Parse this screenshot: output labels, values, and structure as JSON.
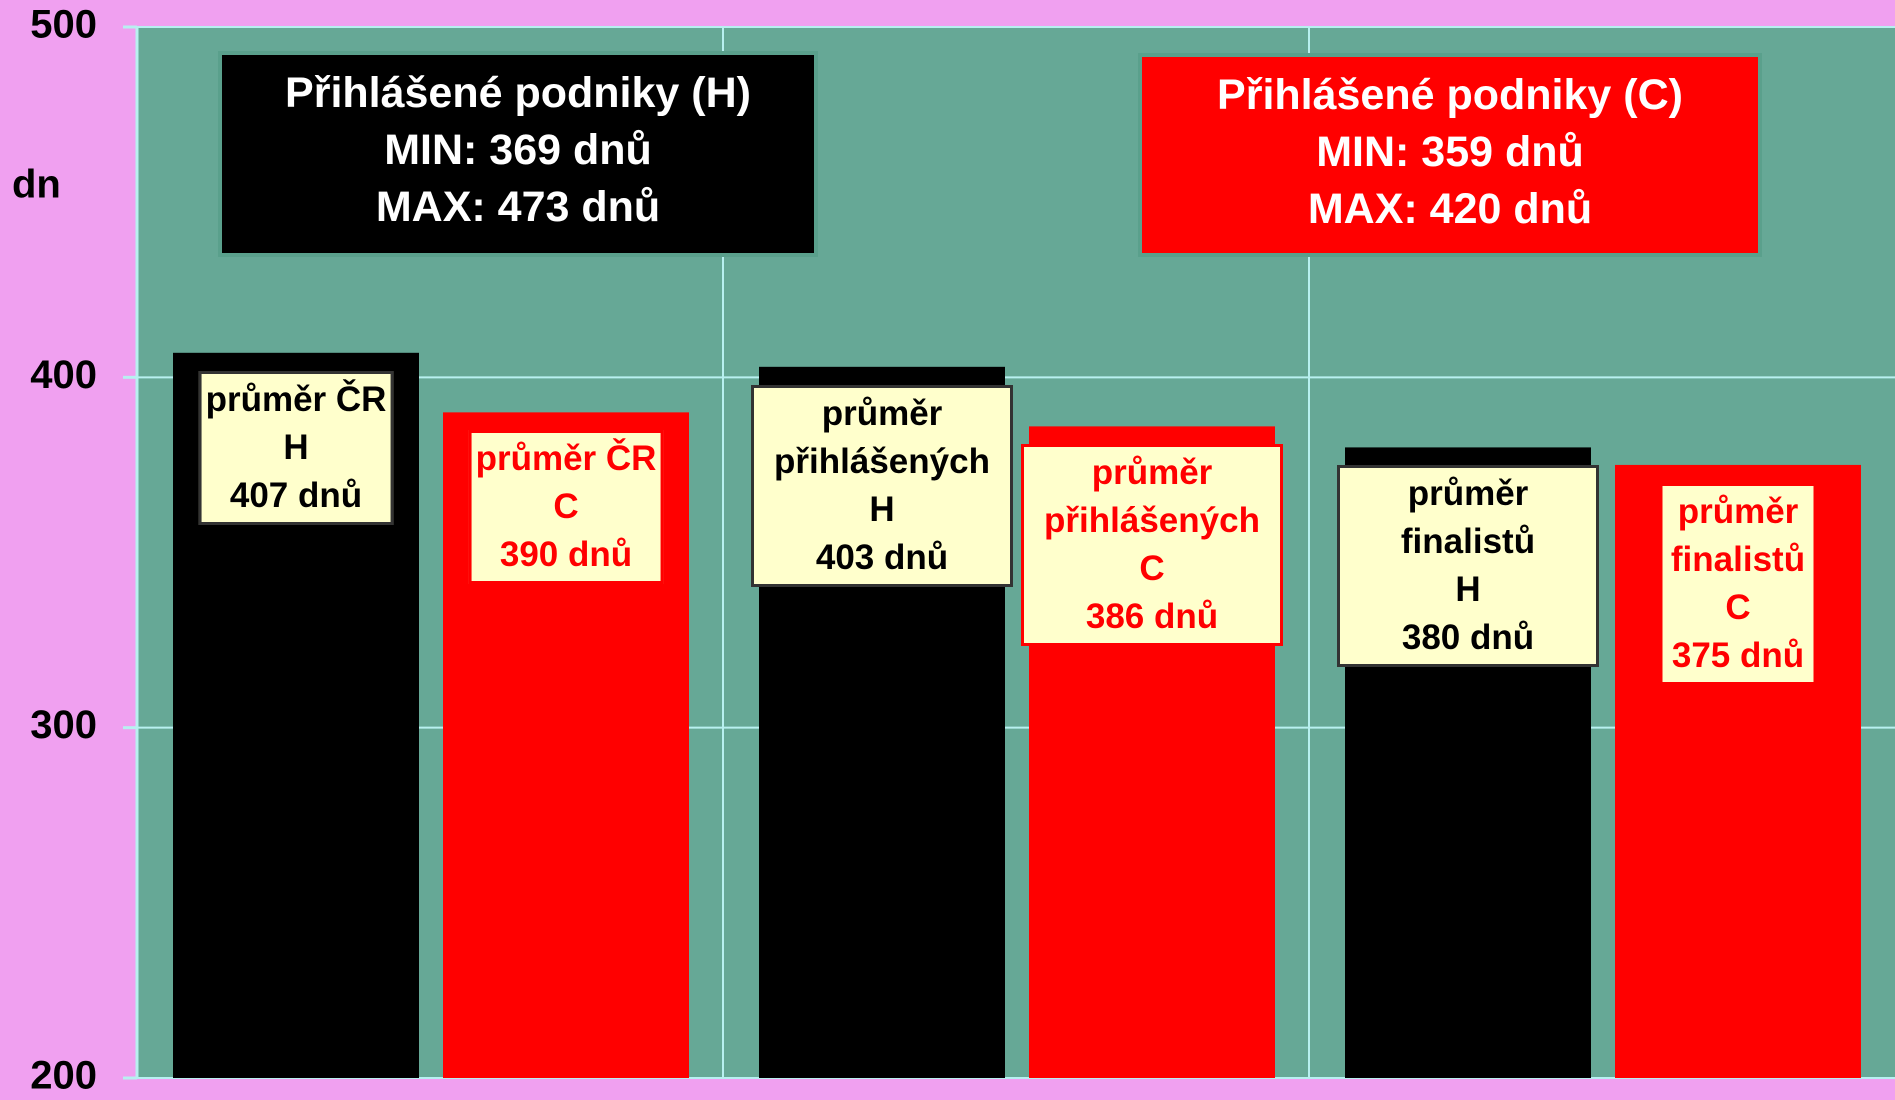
{
  "chart_data": {
    "type": "bar",
    "y_label": "dn",
    "categories": [
      "průměr ČR",
      "průměr přihlášených",
      "průměr finalistů"
    ],
    "series": [
      {
        "name": "H",
        "color": "#000000",
        "label_color": "#000000",
        "values": [
          407,
          403,
          380
        ],
        "value_labels": [
          "407 dnů",
          "403 dnů",
          "380 dnů"
        ]
      },
      {
        "name": "C",
        "color": "#ff0000",
        "label_color": "#ff0000",
        "values": [
          390,
          386,
          375
        ],
        "value_labels": [
          "390 dnů",
          "386 dnů",
          "375 dnů"
        ]
      }
    ],
    "ylim": [
      200,
      500
    ],
    "yticks": [
      200,
      300,
      400,
      500
    ],
    "grid": true,
    "annotations": [
      {
        "lines": [
          "Přihlášené podniky (H)",
          "MIN: 369 dnů",
          "MAX: 473 dnů"
        ],
        "color": "#000000"
      },
      {
        "lines": [
          "Přihlášené podniky (C)",
          "MIN: 359 dnů",
          "MAX: 420 dnů"
        ],
        "color": "#ff0000"
      }
    ]
  }
}
